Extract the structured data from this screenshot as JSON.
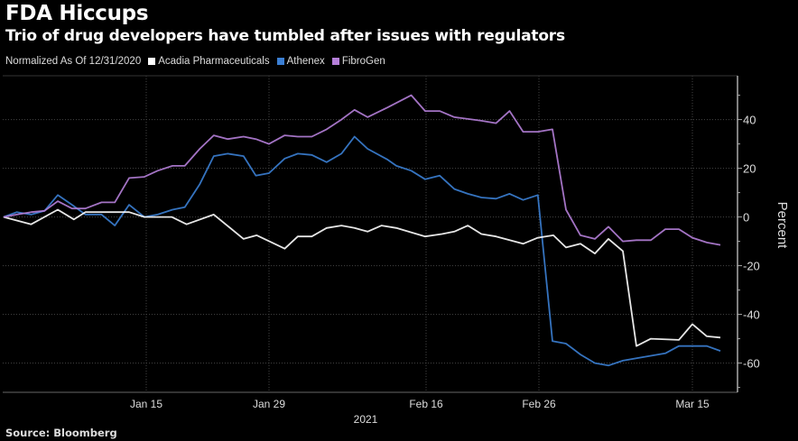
{
  "header": {
    "title": "FDA Hiccups",
    "subtitle": "Trio of drug developers have tumbled after issues with regulators"
  },
  "footer": {
    "source": "Source: Bloomberg"
  },
  "chart_data": {
    "type": "line",
    "title": "FDA Hiccups",
    "subtitle": "Trio of drug developers have tumbled after issues with regulators",
    "legend_note": "Normalized As Of 12/31/2020",
    "legend_placement": "top-left",
    "xlabel": "2021",
    "ylabel": "Percent",
    "x_unit": "days since 12/31/2020",
    "xlim": [
      0,
      80
    ],
    "ylim": [
      -72,
      58
    ],
    "grid": true,
    "x_ticks": [
      {
        "label": "Jan 15",
        "day": 15
      },
      {
        "label": "Jan 29",
        "day": 29
      },
      {
        "label": "Feb 16",
        "day": 47
      },
      {
        "label": "Feb 26",
        "day": 57
      },
      {
        "label": "Mar 15",
        "day": 74
      }
    ],
    "y_ticks": [
      40,
      20,
      0,
      -20,
      -40,
      -60
    ],
    "series": [
      {
        "name": "Acadia Pharmaceuticals",
        "color": "#ffffff",
        "x": [
          0,
          2.9,
          5.7,
          7.4,
          8.6,
          13.2,
          14.8,
          17.9,
          19.6,
          22.7,
          26.1,
          27.6,
          30.8,
          32.3,
          33.9,
          35.6,
          37.3,
          38.8,
          40.3,
          41.9,
          43.6,
          46.9,
          48.4,
          49.5,
          50.7,
          51.9,
          53.2,
          55.6,
          56.9,
          58.6,
          60,
          61.6,
          63.2,
          64.7,
          66.3,
          67.8,
          69.4,
          72.5,
          74,
          75.6,
          77.1
        ],
        "y": [
          0,
          -3,
          3,
          -1,
          2,
          2,
          0,
          0,
          -3,
          1,
          -9,
          -7.5,
          -13,
          -8,
          -8,
          -4.5,
          -3.5,
          -4.5,
          -6,
          -3.5,
          -4.5,
          -8,
          -7,
          -6,
          -3.5,
          -7,
          -8,
          -11,
          -8.5,
          -7.5,
          -12.5,
          -11,
          -15,
          -9,
          -14,
          -53,
          -50,
          -50.5,
          -44,
          -49,
          -49.5
        ]
      },
      {
        "name": "Athenex",
        "color": "#3b7fd4",
        "x": [
          0,
          1.4,
          2.9,
          4.3,
          5.7,
          7.2,
          8.6,
          10.3,
          11.7,
          13.2,
          14.8,
          16.3,
          18,
          19.4,
          21.1,
          22.7,
          24.3,
          26.1,
          27.5,
          29,
          30.8,
          32.3,
          33.9,
          35.6,
          37.3,
          38.8,
          40.3,
          42.6,
          43.6,
          45.3,
          46.9,
          48.2,
          49.5,
          50.7,
          51.9,
          53.2,
          54.4,
          55.6,
          56.9,
          58.5,
          60,
          61.6,
          63.2,
          64.7,
          66.3,
          67.8,
          69.4,
          71,
          72.5,
          74,
          75.6,
          77.1
        ],
        "y": [
          0,
          2,
          1,
          2.5,
          9,
          5,
          1,
          1,
          -3.5,
          5,
          0,
          1,
          3,
          4,
          13.5,
          25,
          26,
          25,
          17,
          18,
          24,
          26,
          25.5,
          22.5,
          26,
          33,
          28,
          23.5,
          21,
          19,
          15.5,
          17,
          11.5,
          9.5,
          8,
          7.5,
          9.5,
          7,
          9,
          -51,
          -52,
          -56.5,
          -60,
          -61,
          -59,
          -58,
          -57,
          -56,
          -53,
          -53,
          -53,
          -55
        ]
      },
      {
        "name": "FibroGen",
        "color": "#b57fd9",
        "x": [
          0,
          1.4,
          2.9,
          4.3,
          5.7,
          7.2,
          8.6,
          10.3,
          11.7,
          13.2,
          14.8,
          16.3,
          18,
          19.4,
          21.1,
          22.7,
          24.3,
          26.1,
          27.5,
          29,
          30.8,
          32.3,
          33.9,
          35.6,
          37.3,
          38.8,
          40.3,
          42.6,
          45.3,
          46.9,
          48.2,
          49.5,
          51.9,
          53.2,
          54.4,
          55.6,
          56.9,
          58.5,
          60,
          61.6,
          63.2,
          64.7,
          66.3,
          67.8,
          69.4,
          71,
          72.5,
          74,
          75.6,
          77.1
        ],
        "y": [
          0,
          1,
          2,
          2.5,
          6.5,
          3.5,
          3.5,
          6,
          6,
          16,
          16.5,
          19,
          21,
          21,
          28,
          33.5,
          32,
          33,
          32,
          30,
          33.5,
          33,
          33,
          36,
          40,
          44,
          41,
          45,
          50,
          43.5,
          43.5,
          41,
          39.5,
          38.5,
          43.5,
          35,
          35,
          36,
          3,
          -7.5,
          -9,
          -4,
          -10,
          -9.5,
          -9.5,
          -5,
          -5,
          -8.5,
          -10.5,
          -11.5
        ]
      }
    ]
  }
}
